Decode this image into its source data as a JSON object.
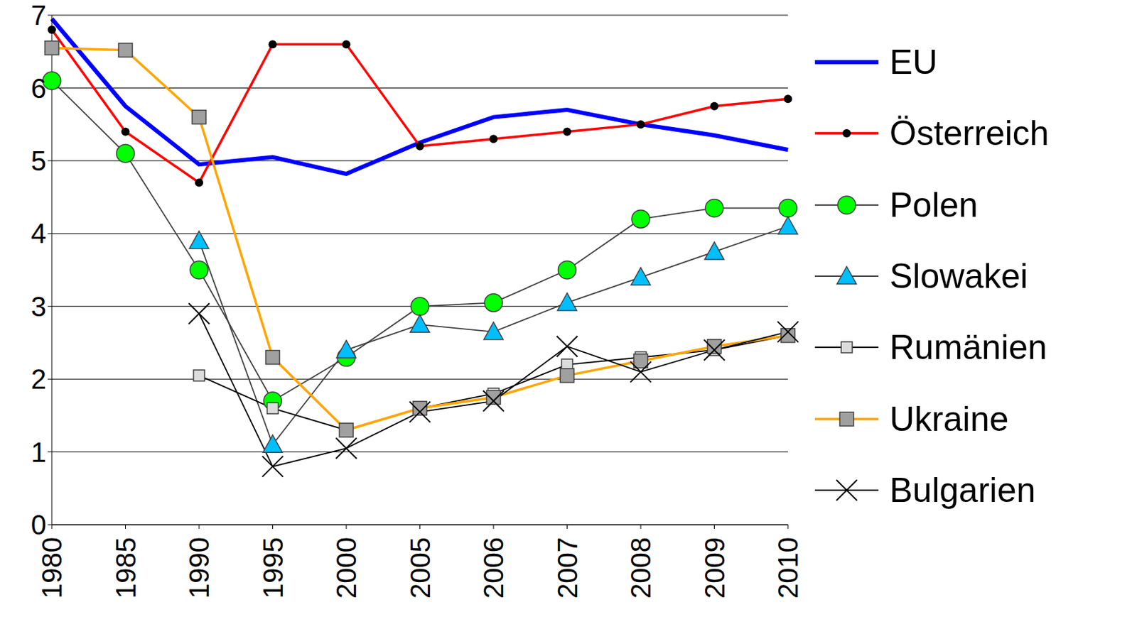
{
  "chart_data": {
    "type": "line",
    "categories": [
      "1980",
      "1985",
      "1990",
      "1995",
      "2000",
      "2005",
      "2006",
      "2007",
      "2008",
      "2009",
      "2010"
    ],
    "ylim": [
      0,
      7
    ],
    "yticks": [
      0,
      1,
      2,
      3,
      4,
      5,
      6,
      7
    ],
    "grid": true,
    "legend": "right",
    "series": [
      {
        "name": "EU",
        "color": "#0000ff",
        "marker": "none",
        "values": [
          6.95,
          5.75,
          4.95,
          5.05,
          4.82,
          5.25,
          5.6,
          5.7,
          5.5,
          5.35,
          5.15
        ]
      },
      {
        "name": "Österreich",
        "color": "#ff0000",
        "marker": "dot",
        "values": [
          6.8,
          5.4,
          4.7,
          6.6,
          6.6,
          5.2,
          5.3,
          5.4,
          5.5,
          5.75,
          5.85
        ]
      },
      {
        "name": "Polen",
        "color": "#404040",
        "marker": "circle",
        "values": [
          6.1,
          5.1,
          3.5,
          1.7,
          2.3,
          3.0,
          3.05,
          3.5,
          4.2,
          4.35,
          4.35
        ]
      },
      {
        "name": "Slowakei",
        "color": "#404040",
        "marker": "triangle",
        "values": [
          null,
          null,
          3.9,
          1.1,
          2.4,
          2.75,
          2.65,
          3.05,
          3.4,
          3.75,
          4.1
        ]
      },
      {
        "name": "Rumänien",
        "color": "#000000",
        "marker": "small-square",
        "values": [
          null,
          null,
          2.05,
          1.6,
          1.3,
          1.6,
          1.8,
          2.2,
          2.3,
          2.4,
          2.6
        ]
      },
      {
        "name": "Ukraine",
        "color": "#ffa500",
        "marker": "square",
        "values": [
          6.55,
          6.52,
          5.6,
          2.3,
          1.3,
          1.6,
          1.75,
          2.05,
          2.25,
          2.45,
          2.6
        ]
      },
      {
        "name": "Bulgarien",
        "color": "#000000",
        "marker": "x",
        "values": [
          null,
          null,
          2.9,
          0.8,
          1.05,
          1.55,
          1.7,
          2.45,
          2.1,
          2.4,
          2.65
        ]
      }
    ]
  }
}
